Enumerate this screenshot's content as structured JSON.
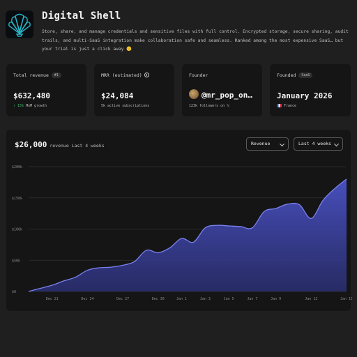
{
  "app": {
    "title": "Digital Shell",
    "description": "Store, share, and manage credentials and sensitive files with full control. Encrypted storage, secure sharing, audit trails, and multi-SaaS integration make collaboration safe and seamless. Ranked among the most expensive SaaS… but your trial is just a click away 🙂"
  },
  "cards": {
    "total_revenue": {
      "label": "Total revenue",
      "badge": "#1",
      "value": "$632,480",
      "growth": "↑ 15%",
      "growth_suffix": " MoM growth"
    },
    "mrr": {
      "label": "MRR (estimated)",
      "value": "$24,084",
      "sub": "5k active subscriptions"
    },
    "founder": {
      "label": "Founder",
      "value": "@mr_pop_on…",
      "sub": "123k followers on 𝕏"
    },
    "founded": {
      "label": "Founded",
      "badge": "SaaS",
      "value": "January 2026",
      "country": "France"
    }
  },
  "revenue_panel": {
    "value": "$26,000",
    "caption": "revenue Last 4 weeks",
    "metric_select": "Revenue",
    "range_select": "Last 4 weeks"
  },
  "colors": {
    "accent": "#5b64d8",
    "background": "#1f1f1f",
    "card": "#151515",
    "positive": "#3fc26a"
  },
  "chart_data": {
    "type": "area",
    "title": "",
    "xlabel": "",
    "ylabel": "",
    "ylim": [
      0,
      200000
    ],
    "yticks": [
      "$0",
      "$50k",
      "$100k",
      "$150k",
      "$200k"
    ],
    "ytick_values": [
      0,
      50000,
      100000,
      150000,
      200000
    ],
    "xticks": [
      "Dec 21",
      "Dec 24",
      "Dec 27",
      "Dec 30",
      "Jan 1",
      "Jan 3",
      "Jan 5",
      "Jan 7",
      "Jan 9",
      "Jan 12",
      "Jan 15"
    ],
    "xtick_days": [
      0,
      3,
      6,
      9,
      11,
      13,
      15,
      17,
      19,
      22,
      25
    ],
    "grid": true,
    "series": [
      {
        "days": [
          -2,
          -1,
          0,
          1,
          2,
          3,
          4,
          5,
          6,
          7,
          8,
          9,
          10,
          11,
          12,
          13,
          14,
          15,
          16,
          17,
          18,
          19,
          20,
          21,
          22,
          23,
          24,
          25
        ],
        "values": [
          0,
          5000,
          10000,
          17000,
          23000,
          34000,
          38000,
          39000,
          42000,
          48000,
          66000,
          62000,
          70000,
          85000,
          79000,
          102000,
          106000,
          105000,
          104000,
          102000,
          128000,
          133000,
          140000,
          139000,
          117000,
          146000,
          165000,
          180000
        ]
      }
    ]
  }
}
